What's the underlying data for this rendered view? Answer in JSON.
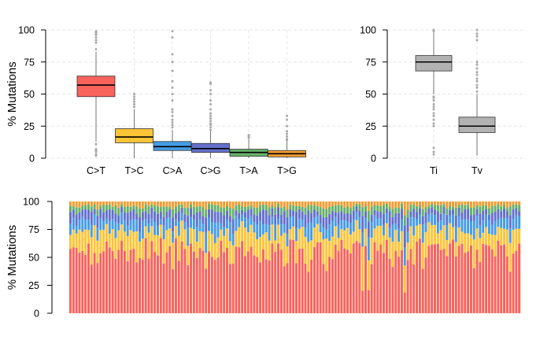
{
  "chart_data": [
    {
      "type": "box",
      "ylabel": "% Mutations",
      "ylim": [
        0,
        100
      ],
      "yticks": [
        0,
        25,
        50,
        75,
        100
      ],
      "grid": true,
      "categories": [
        "C>T",
        "T>C",
        "C>A",
        "C>G",
        "T>A",
        "T>G"
      ],
      "colors": [
        "#f8635c",
        "#fcc436",
        "#469ce5",
        "#6470cb",
        "#67b06a",
        "#f39d32"
      ],
      "boxes": [
        {
          "label": "C>T",
          "q1": 48,
          "median": 57,
          "q3": 64,
          "whisker_low": 13,
          "whisker_high": 83,
          "outliers": [
            2,
            3,
            5,
            6,
            7,
            11,
            85,
            90,
            92,
            94,
            96,
            97,
            98,
            99
          ]
        },
        {
          "label": "T>C",
          "q1": 12,
          "median": 16.5,
          "q3": 23,
          "whisker_low": 0,
          "whisker_high": 38,
          "outliers": [
            40,
            42,
            44,
            46,
            48,
            50
          ]
        },
        {
          "label": "C>A",
          "q1": 6,
          "median": 9,
          "q3": 13,
          "whisker_low": 0,
          "whisker_high": 22,
          "outliers": [
            24,
            26,
            28,
            30,
            33,
            36,
            38,
            45,
            50,
            55,
            60,
            68,
            75,
            81,
            94,
            99
          ]
        },
        {
          "label": "C>G",
          "q1": 4.5,
          "median": 7.5,
          "q3": 11.5,
          "whisker_low": 0,
          "whisker_high": 21,
          "outliers": [
            22,
            24,
            26,
            27,
            29,
            31,
            33,
            35,
            38,
            42,
            45,
            50,
            53,
            58,
            59
          ]
        },
        {
          "label": "T>A",
          "q1": 1.5,
          "median": 4.5,
          "q3": 7,
          "whisker_low": 0,
          "whisker_high": 15,
          "outliers": [
            16,
            17,
            18
          ]
        },
        {
          "label": "T>G",
          "q1": 1,
          "median": 3.5,
          "q3": 6,
          "whisker_low": 0,
          "whisker_high": 13,
          "outliers": [
            14,
            15,
            17,
            19,
            21,
            25,
            30,
            33
          ]
        }
      ]
    },
    {
      "type": "box",
      "ylim": [
        0,
        100
      ],
      "yticks": [
        0,
        25,
        50,
        75,
        100
      ],
      "grid": true,
      "categories": [
        "Ti",
        "Tv"
      ],
      "colors": [
        "#b2b2b2",
        "#b2b2b2"
      ],
      "boxes": [
        {
          "label": "Ti",
          "q1": 68,
          "median": 75,
          "q3": 80,
          "whisker_low": 50,
          "whisker_high": 98,
          "outliers": [
            3,
            5,
            8,
            25,
            27,
            30,
            33,
            35,
            38,
            40,
            42,
            45,
            47,
            48,
            99,
            100
          ]
        },
        {
          "label": "Tv",
          "q1": 20,
          "median": 25,
          "q3": 32,
          "whisker_low": 2,
          "whisker_high": 50,
          "outliers": [
            52,
            55,
            57,
            60,
            62,
            65,
            67,
            70,
            73,
            75,
            92,
            95,
            97,
            100
          ]
        }
      ]
    },
    {
      "type": "bar",
      "stacked": true,
      "ylabel": "% Mutations",
      "ylim": [
        0,
        100
      ],
      "yticks": [
        0,
        25,
        50,
        75,
        100
      ],
      "grid": false,
      "n_samples": 150,
      "series": [
        {
          "key": "C>T",
          "color": "#f8635c",
          "mean": 56
        },
        {
          "key": "T>C",
          "color": "#fcc436",
          "mean": 17
        },
        {
          "key": "C>A",
          "color": "#469ce5",
          "mean": 10
        },
        {
          "key": "C>G",
          "color": "#6470cb",
          "mean": 8
        },
        {
          "key": "T>A",
          "color": "#67b06a",
          "mean": 5
        },
        {
          "key": "T>G",
          "color": "#f39d32",
          "mean": 4
        }
      ]
    }
  ]
}
